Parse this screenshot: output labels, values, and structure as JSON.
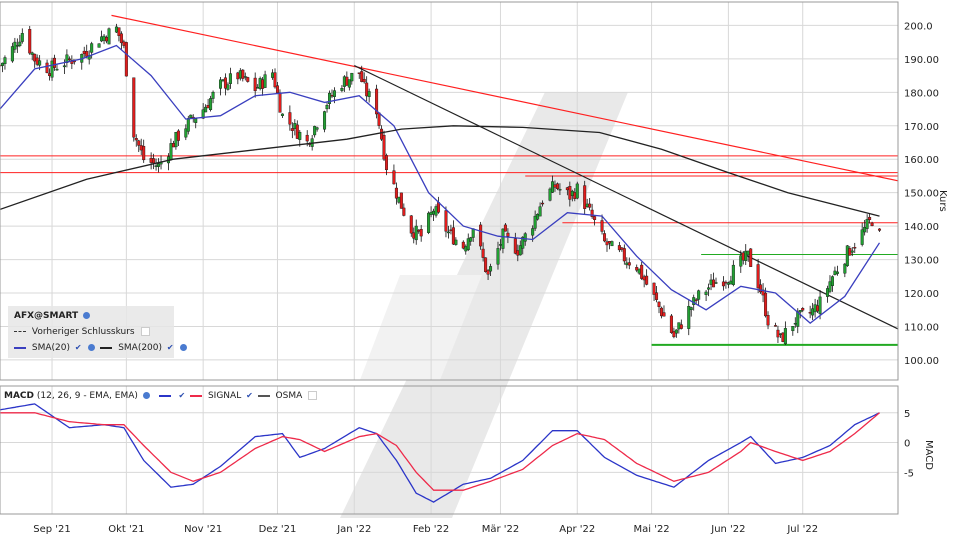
{
  "chart_data": [
    {
      "type": "candlestick",
      "title": "",
      "symbol": "AFX@SMART",
      "ylabel": "Kurs",
      "ylim": [
        94,
        207
      ],
      "yticks": [
        "200.0",
        "190.00",
        "180.00",
        "170.00",
        "160.00",
        "150.00",
        "140.00",
        "130.00",
        "120.00",
        "110.00",
        "100.00"
      ],
      "ytick_values": [
        200,
        190,
        180,
        170,
        160,
        150,
        140,
        130,
        120,
        110,
        100
      ],
      "xtick_labels": [
        "Sep '21",
        "Okt '21",
        "Nov '21",
        "Dez '21",
        "Jan '22",
        "Feb '22",
        "Mär '22",
        "Apr '22",
        "Mai '22",
        "Jun '22",
        "Jul '22"
      ],
      "xtick_dates": [
        "2021-09-01",
        "2021-10-01",
        "2021-11-01",
        "2021-12-01",
        "2022-01-01",
        "2022-02-01",
        "2022-03-01",
        "2022-04-01",
        "2022-05-01",
        "2022-06-01",
        "2022-07-01"
      ],
      "x_range": [
        "2021-08-11",
        "2022-08-02"
      ],
      "close_points": [
        [
          "2021-08-11",
          188
        ],
        [
          "2021-08-16",
          193
        ],
        [
          "2021-08-20",
          198
        ],
        [
          "2021-08-25",
          190
        ],
        [
          "2021-08-31",
          187
        ],
        [
          "2021-09-06",
          189
        ],
        [
          "2021-09-13",
          191
        ],
        [
          "2021-09-20",
          196
        ],
        [
          "2021-09-27",
          199
        ],
        [
          "2021-09-30",
          193
        ],
        [
          "2021-10-04",
          168
        ],
        [
          "2021-10-08",
          160
        ],
        [
          "2021-10-14",
          158
        ],
        [
          "2021-10-19",
          164
        ],
        [
          "2021-10-25",
          170
        ],
        [
          "2021-11-01",
          175
        ],
        [
          "2021-11-08",
          182
        ],
        [
          "2021-11-15",
          185
        ],
        [
          "2021-11-22",
          181
        ],
        [
          "2021-11-29",
          186
        ],
        [
          "2021-12-03",
          173
        ],
        [
          "2021-12-07",
          170
        ],
        [
          "2021-12-13",
          165
        ],
        [
          "2021-12-20",
          176
        ],
        [
          "2021-12-27",
          183
        ],
        [
          "2022-01-03",
          186
        ],
        [
          "2022-01-05",
          181
        ],
        [
          "2022-01-10",
          175
        ],
        [
          "2022-01-14",
          158
        ],
        [
          "2022-01-19",
          148
        ],
        [
          "2022-01-24",
          139
        ],
        [
          "2022-01-28",
          137
        ],
        [
          "2022-02-02",
          145
        ],
        [
          "2022-02-08",
          138
        ],
        [
          "2022-02-14",
          134
        ],
        [
          "2022-02-18",
          140
        ],
        [
          "2022-02-24",
          125
        ],
        [
          "2022-03-02",
          137
        ],
        [
          "2022-03-08",
          133
        ],
        [
          "2022-03-14",
          141
        ],
        [
          "2022-03-18",
          148
        ],
        [
          "2022-03-23",
          152
        ],
        [
          "2022-03-29",
          149
        ],
        [
          "2022-04-01",
          151
        ],
        [
          "2022-04-06",
          144
        ],
        [
          "2022-04-12",
          135
        ],
        [
          "2022-04-19",
          131
        ],
        [
          "2022-04-25",
          128
        ],
        [
          "2022-05-01",
          120
        ],
        [
          "2022-05-06",
          113
        ],
        [
          "2022-05-10",
          107
        ],
        [
          "2022-05-16",
          115
        ],
        [
          "2022-05-20",
          119
        ],
        [
          "2022-05-26",
          123
        ],
        [
          "2022-06-01",
          125
        ],
        [
          "2022-06-06",
          129
        ],
        [
          "2022-06-09",
          131
        ],
        [
          "2022-06-14",
          121
        ],
        [
          "2022-06-17",
          112
        ],
        [
          "2022-06-22",
          106
        ],
        [
          "2022-06-28",
          112
        ],
        [
          "2022-07-04",
          114
        ],
        [
          "2022-07-08",
          117
        ],
        [
          "2022-07-13",
          125
        ],
        [
          "2022-07-19",
          132
        ],
        [
          "2022-07-25",
          138
        ],
        [
          "2022-07-29",
          142
        ],
        [
          "2022-08-01",
          137
        ]
      ],
      "series": [
        {
          "name": "SMA(20)",
          "color": "#3a3fbf",
          "points": [
            [
              "2021-08-11",
              175
            ],
            [
              "2021-08-25",
              187
            ],
            [
              "2021-09-13",
              190
            ],
            [
              "2021-09-27",
              194
            ],
            [
              "2021-10-11",
              185
            ],
            [
              "2021-10-25",
              172
            ],
            [
              "2021-11-08",
              173
            ],
            [
              "2021-11-22",
              179
            ],
            [
              "2021-12-06",
              180
            ],
            [
              "2021-12-20",
              177
            ],
            [
              "2022-01-03",
              179
            ],
            [
              "2022-01-17",
              170
            ],
            [
              "2022-01-31",
              150
            ],
            [
              "2022-02-14",
              140
            ],
            [
              "2022-02-28",
              137
            ],
            [
              "2022-03-14",
              136
            ],
            [
              "2022-03-28",
              144
            ],
            [
              "2022-04-11",
              143
            ],
            [
              "2022-04-25",
              131
            ],
            [
              "2022-05-09",
              121
            ],
            [
              "2022-05-23",
              115
            ],
            [
              "2022-06-06",
              122
            ],
            [
              "2022-06-20",
              120
            ],
            [
              "2022-07-04",
              111
            ],
            [
              "2022-07-18",
              119
            ],
            [
              "2022-08-01",
              135
            ]
          ]
        },
        {
          "name": "SMA(200)",
          "color": "#222222",
          "points": [
            [
              "2021-08-11",
              145
            ],
            [
              "2021-09-15",
              154
            ],
            [
              "2021-10-20",
              160
            ],
            [
              "2021-11-24",
              163
            ],
            [
              "2021-12-29",
              166
            ],
            [
              "2022-01-20",
              169
            ],
            [
              "2022-02-10",
              170
            ],
            [
              "2022-03-10",
              169.5
            ],
            [
              "2022-04-10",
              168
            ],
            [
              "2022-05-05",
              163
            ],
            [
              "2022-06-01",
              156
            ],
            [
              "2022-06-25",
              150
            ],
            [
              "2022-08-01",
              143
            ]
          ]
        },
        {
          "name": "Vorheriger Schlusskurs",
          "color": "#444444",
          "style": "dashed",
          "points": []
        }
      ],
      "trendlines": [
        {
          "color": "#ff2020",
          "points": [
            [
              "2021-09-25",
              203
            ],
            [
              "2022-08-12",
              153
            ]
          ]
        },
        {
          "color": "#222222",
          "points": [
            [
              "2022-01-01",
              188
            ],
            [
              "2022-08-12",
              108
            ]
          ]
        }
      ],
      "hlines": [
        {
          "color": "#ff2020",
          "y": 161,
          "from": "2021-08-11",
          "to": "2022-08-12"
        },
        {
          "color": "#ff2020",
          "y": 156,
          "from": "2021-08-11",
          "to": "2022-08-12"
        },
        {
          "color": "#ff2020",
          "y": 155,
          "from": "2022-03-11",
          "to": "2022-08-12"
        },
        {
          "color": "#ff2020",
          "y": 141,
          "from": "2022-03-26",
          "to": "2022-08-12"
        },
        {
          "color": "#22aa22",
          "y": 131.5,
          "from": "2022-05-21",
          "to": "2022-08-12"
        },
        {
          "color": "#22aa22",
          "y": 104.5,
          "from": "2022-05-01",
          "to": "2022-08-12",
          "width": 2
        }
      ],
      "grid": true,
      "legend_position": "bottom-left"
    },
    {
      "type": "line",
      "title": "MACD",
      "params": "(12, 26, 9 - EMA, EMA)",
      "ylabel": "MACD",
      "ylim": [
        -12,
        9.5
      ],
      "yticks": [
        "5",
        "0",
        "-5"
      ],
      "ytick_values": [
        5,
        0,
        -5
      ],
      "series": [
        {
          "name": "MACD",
          "color": "#2b35c8",
          "points": [
            [
              "2021-08-11",
              5.5
            ],
            [
              "2021-08-25",
              6.5
            ],
            [
              "2021-09-08",
              2.5
            ],
            [
              "2021-09-22",
              3
            ],
            [
              "2021-09-30",
              2.5
            ],
            [
              "2021-10-08",
              -3
            ],
            [
              "2021-10-19",
              -7.5
            ],
            [
              "2021-10-28",
              -7
            ],
            [
              "2021-11-08",
              -4
            ],
            [
              "2021-11-22",
              1
            ],
            [
              "2021-12-03",
              1.5
            ],
            [
              "2021-12-10",
              -2.5
            ],
            [
              "2021-12-20",
              -1
            ],
            [
              "2022-01-03",
              2.5
            ],
            [
              "2022-01-10",
              1.5
            ],
            [
              "2022-01-18",
              -3
            ],
            [
              "2022-01-26",
              -8.5
            ],
            [
              "2022-02-02",
              -10
            ],
            [
              "2022-02-14",
              -7
            ],
            [
              "2022-02-25",
              -6
            ],
            [
              "2022-03-10",
              -3
            ],
            [
              "2022-03-22",
              2
            ],
            [
              "2022-04-01",
              2
            ],
            [
              "2022-04-12",
              -2.5
            ],
            [
              "2022-04-25",
              -5.5
            ],
            [
              "2022-05-10",
              -7.5
            ],
            [
              "2022-05-24",
              -3
            ],
            [
              "2022-06-06",
              0
            ],
            [
              "2022-06-10",
              1
            ],
            [
              "2022-06-20",
              -3.5
            ],
            [
              "2022-07-01",
              -2.5
            ],
            [
              "2022-07-12",
              -0.5
            ],
            [
              "2022-07-22",
              3
            ],
            [
              "2022-08-01",
              5
            ]
          ]
        },
        {
          "name": "SIGNAL",
          "color": "#ee2a4a",
          "points": [
            [
              "2021-08-11",
              5
            ],
            [
              "2021-08-25",
              5
            ],
            [
              "2021-09-08",
              3.5
            ],
            [
              "2021-09-22",
              3
            ],
            [
              "2021-09-30",
              3
            ],
            [
              "2021-10-08",
              -0.5
            ],
            [
              "2021-10-19",
              -5
            ],
            [
              "2021-10-28",
              -6.5
            ],
            [
              "2021-11-08",
              -5
            ],
            [
              "2021-11-22",
              -1
            ],
            [
              "2021-12-03",
              1
            ],
            [
              "2021-12-10",
              0.5
            ],
            [
              "2021-12-20",
              -1.5
            ],
            [
              "2022-01-03",
              1
            ],
            [
              "2022-01-10",
              1.5
            ],
            [
              "2022-01-18",
              -0.5
            ],
            [
              "2022-01-26",
              -5
            ],
            [
              "2022-02-02",
              -8
            ],
            [
              "2022-02-14",
              -8
            ],
            [
              "2022-02-25",
              -6.5
            ],
            [
              "2022-03-10",
              -4.5
            ],
            [
              "2022-03-22",
              -0.5
            ],
            [
              "2022-04-01",
              1.5
            ],
            [
              "2022-04-12",
              0.5
            ],
            [
              "2022-04-25",
              -3.5
            ],
            [
              "2022-05-10",
              -6.5
            ],
            [
              "2022-05-24",
              -5
            ],
            [
              "2022-06-06",
              -1.5
            ],
            [
              "2022-06-10",
              0
            ],
            [
              "2022-06-20",
              -1.5
            ],
            [
              "2022-07-01",
              -3
            ],
            [
              "2022-07-12",
              -1.5
            ],
            [
              "2022-07-22",
              1.5
            ],
            [
              "2022-08-01",
              5
            ]
          ]
        },
        {
          "name": "OSMA",
          "color": "#555555",
          "points": []
        }
      ],
      "grid": true,
      "legend_position": "top-left"
    }
  ],
  "legend": {
    "symbol": "AFX@SMART",
    "prev_close": "Vorheriger Schlusskurs",
    "sma20": "SMA(20)",
    "sma200": "SMA(200)",
    "macd_title": "MACD",
    "macd_params": "(12, 26, 9 - EMA, EMA)",
    "macd_signal": "SIGNAL",
    "macd_osma": "OSMA"
  },
  "colors": {
    "candle_up": "#22a033",
    "candle_down": "#e01d1d",
    "wick": "#111111",
    "grid": "#d8d8d8",
    "watermark": "#e6e6e6"
  }
}
